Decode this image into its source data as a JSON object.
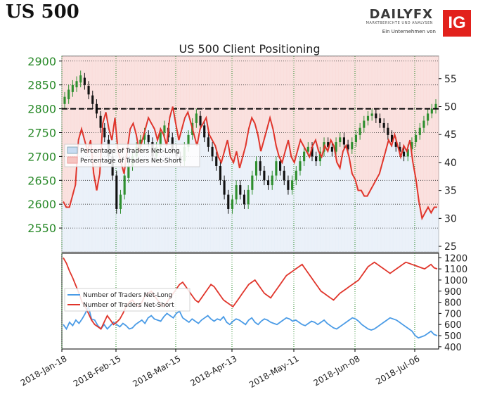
{
  "header": {
    "title": "US 500",
    "brand": "DAILYFX",
    "brand_sub": "MARKTBERICHTE UND ANALYSEN",
    "brand_tagline": "Ein Unternehmen von",
    "brand_logo": "IG"
  },
  "chart_data": [
    {
      "type": "line",
      "title": "US 500 Client Positioning",
      "left_axis_ticks": [
        2550,
        2600,
        2650,
        2700,
        2750,
        2800,
        2850,
        2900
      ],
      "left_ylim": [
        2500,
        2910
      ],
      "right_axis_ticks": [
        25,
        30,
        35,
        40,
        45,
        50,
        55
      ],
      "right_ylim": [
        24,
        59
      ],
      "current_price_line": 2800,
      "legend": [
        "Percentage of Traders Net-Long",
        "Percentage of Traders Net-Short"
      ],
      "x": [
        "2018-Jan-18",
        "2018-Feb-15",
        "2018-Mar-15",
        "2018-Apr-13",
        "2018-May-11",
        "2018-Jun-08",
        "2018-Jul-06"
      ],
      "net_short_percentage": [
        33,
        32,
        32,
        34,
        36,
        44,
        46,
        44,
        42,
        44,
        38,
        35,
        38,
        47,
        49,
        46,
        44,
        48,
        42,
        40,
        38,
        42,
        46,
        47,
        45,
        42,
        44,
        46,
        48,
        47,
        46,
        44,
        46,
        45,
        43,
        48,
        50,
        47,
        44,
        46,
        48,
        49,
        47,
        45,
        43,
        46,
        47,
        48,
        45,
        44,
        43,
        41,
        40,
        42,
        44,
        41,
        40,
        42,
        39,
        41,
        43,
        46,
        48,
        47,
        45,
        42,
        44,
        46,
        48,
        46,
        43,
        41,
        40,
        42,
        44,
        41,
        40,
        42,
        44,
        43,
        42,
        41,
        43,
        44,
        42,
        41,
        43,
        42,
        44,
        43,
        40,
        39,
        42,
        43,
        41,
        38,
        37,
        35,
        35,
        34,
        34,
        35,
        36,
        37,
        38,
        40,
        42,
        44,
        43,
        45,
        43,
        41,
        43,
        42,
        44,
        40,
        37,
        33,
        30,
        31,
        32,
        31,
        32,
        32
      ],
      "price_open_close": [
        [
          2810,
          2825
        ],
        [
          2820,
          2840
        ],
        [
          2835,
          2850
        ],
        [
          2845,
          2858
        ],
        [
          2855,
          2870
        ],
        [
          2865,
          2850
        ],
        [
          2848,
          2830
        ],
        [
          2828,
          2810
        ],
        [
          2810,
          2790
        ],
        [
          2785,
          2760
        ],
        [
          2760,
          2740
        ],
        [
          2735,
          2700
        ],
        [
          2700,
          2660
        ],
        [
          2660,
          2590
        ],
        [
          2590,
          2620
        ],
        [
          2620,
          2660
        ],
        [
          2655,
          2680
        ],
        [
          2680,
          2700
        ],
        [
          2700,
          2720
        ],
        [
          2720,
          2735
        ],
        [
          2735,
          2750
        ],
        [
          2745,
          2730
        ],
        [
          2730,
          2700
        ],
        [
          2700,
          2720
        ],
        [
          2720,
          2750
        ],
        [
          2750,
          2765
        ],
        [
          2760,
          2740
        ],
        [
          2740,
          2715
        ],
        [
          2715,
          2700
        ],
        [
          2700,
          2690
        ],
        [
          2690,
          2720
        ],
        [
          2720,
          2745
        ],
        [
          2745,
          2770
        ],
        [
          2770,
          2790
        ],
        [
          2785,
          2765
        ],
        [
          2765,
          2740
        ],
        [
          2740,
          2720
        ],
        [
          2720,
          2700
        ],
        [
          2700,
          2680
        ],
        [
          2680,
          2650
        ],
        [
          2650,
          2620
        ],
        [
          2620,
          2590
        ],
        [
          2590,
          2610
        ],
        [
          2610,
          2640
        ],
        [
          2640,
          2620
        ],
        [
          2620,
          2600
        ],
        [
          2600,
          2630
        ],
        [
          2630,
          2660
        ],
        [
          2660,
          2690
        ],
        [
          2690,
          2670
        ],
        [
          2670,
          2650
        ],
        [
          2650,
          2640
        ],
        [
          2640,
          2660
        ],
        [
          2660,
          2690
        ],
        [
          2690,
          2670
        ],
        [
          2670,
          2650
        ],
        [
          2650,
          2630
        ],
        [
          2630,
          2650
        ],
        [
          2650,
          2670
        ],
        [
          2670,
          2690
        ],
        [
          2690,
          2710
        ],
        [
          2710,
          2720
        ],
        [
          2720,
          2700
        ],
        [
          2700,
          2690
        ],
        [
          2690,
          2710
        ],
        [
          2710,
          2730
        ],
        [
          2730,
          2720
        ],
        [
          2720,
          2710
        ],
        [
          2710,
          2730
        ],
        [
          2730,
          2740
        ],
        [
          2740,
          2725
        ],
        [
          2725,
          2715
        ],
        [
          2715,
          2730
        ],
        [
          2730,
          2745
        ],
        [
          2745,
          2760
        ],
        [
          2760,
          2775
        ],
        [
          2775,
          2785
        ],
        [
          2785,
          2790
        ],
        [
          2790,
          2780
        ],
        [
          2780,
          2770
        ],
        [
          2770,
          2760
        ],
        [
          2760,
          2745
        ],
        [
          2745,
          2730
        ],
        [
          2730,
          2720
        ],
        [
          2720,
          2710
        ],
        [
          2710,
          2700
        ],
        [
          2700,
          2715
        ],
        [
          2715,
          2730
        ],
        [
          2730,
          2745
        ],
        [
          2745,
          2760
        ],
        [
          2760,
          2775
        ],
        [
          2775,
          2790
        ],
        [
          2790,
          2800
        ],
        [
          2800,
          2810
        ]
      ]
    },
    {
      "type": "line",
      "right_axis_ticks": [
        400,
        500,
        600,
        700,
        800,
        900,
        1000,
        1100,
        1200
      ],
      "right_ylim": [
        380,
        1240
      ],
      "legend": [
        "Number of Traders Net-Long",
        "Number of Traders Net-Short"
      ],
      "net_long": [
        600,
        560,
        620,
        590,
        640,
        610,
        650,
        700,
        760,
        650,
        640,
        590,
        560,
        600,
        560,
        590,
        620,
        600,
        580,
        610,
        590,
        560,
        570,
        600,
        620,
        640,
        610,
        660,
        680,
        650,
        640,
        630,
        670,
        700,
        680,
        660,
        700,
        720,
        660,
        640,
        620,
        650,
        630,
        610,
        640,
        660,
        680,
        650,
        630,
        650,
        640,
        670,
        620,
        600,
        630,
        650,
        640,
        620,
        600,
        640,
        660,
        620,
        600,
        630,
        650,
        640,
        620,
        610,
        600,
        620,
        640,
        660,
        650,
        630,
        640,
        620,
        600,
        590,
        610,
        630,
        620,
        600,
        620,
        640,
        610,
        590,
        570,
        560,
        580,
        600,
        620,
        640,
        660,
        650,
        630,
        600,
        580,
        560,
        550,
        560,
        580,
        600,
        620,
        640,
        660,
        650,
        640,
        620,
        600,
        580,
        560,
        540,
        500,
        480,
        490,
        500,
        520,
        540,
        510,
        500
      ],
      "net_short": [
        1200,
        1150,
        1080,
        1020,
        950,
        880,
        800,
        760,
        700,
        640,
        600,
        580,
        560,
        620,
        680,
        640,
        600,
        620,
        650,
        700,
        760,
        800,
        820,
        780,
        760,
        800,
        860,
        880,
        900,
        860,
        820,
        780,
        760,
        800,
        840,
        880,
        920,
        960,
        980,
        940,
        900,
        860,
        820,
        800,
        840,
        880,
        920,
        960,
        940,
        900,
        860,
        820,
        800,
        780,
        760,
        800,
        840,
        880,
        920,
        960,
        980,
        1000,
        960,
        920,
        880,
        860,
        840,
        880,
        920,
        960,
        1000,
        1040,
        1060,
        1080,
        1100,
        1120,
        1140,
        1100,
        1060,
        1020,
        980,
        940,
        900,
        880,
        860,
        840,
        820,
        850,
        880,
        900,
        920,
        940,
        960,
        980,
        1000,
        1040,
        1080,
        1120,
        1140,
        1160,
        1140,
        1120,
        1100,
        1080,
        1060,
        1080,
        1100,
        1120,
        1140,
        1160,
        1150,
        1140,
        1130,
        1120,
        1110,
        1100,
        1120,
        1140,
        1110,
        1100
      ]
    }
  ],
  "footer": {
    "note": ""
  }
}
